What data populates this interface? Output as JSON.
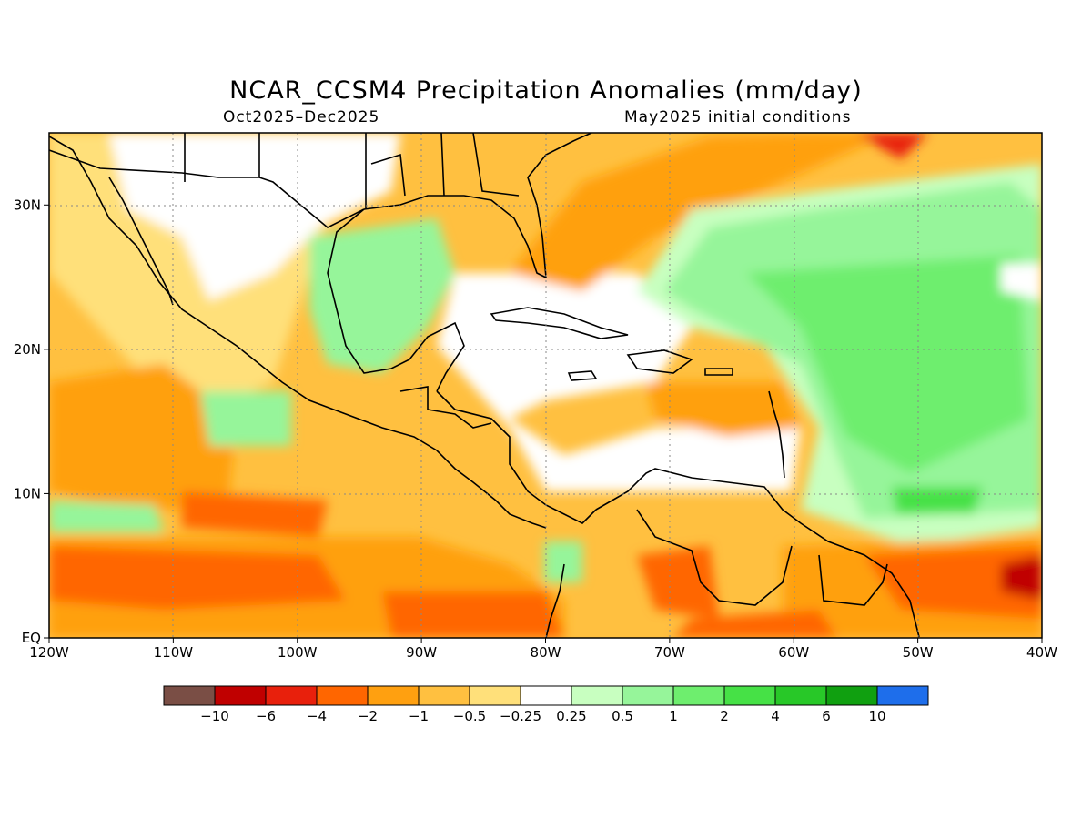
{
  "title": "NCAR_CCSM4 Precipitation Anomalies (mm/day)",
  "subtitle_left": "Oct2025–Dec2025",
  "subtitle_right": "May2025 initial conditions",
  "map": {
    "lon_range": [
      -120,
      -40
    ],
    "lat_range": [
      0,
      35
    ],
    "lon_ticks": [
      {
        "lon": -120,
        "label": "120W"
      },
      {
        "lon": -110,
        "label": "110W"
      },
      {
        "lon": -100,
        "label": "100W"
      },
      {
        "lon": -90,
        "label": "90W"
      },
      {
        "lon": -80,
        "label": "80W"
      },
      {
        "lon": -70,
        "label": "70W"
      },
      {
        "lon": -60,
        "label": "60W"
      },
      {
        "lon": -50,
        "label": "50W"
      },
      {
        "lon": -40,
        "label": "40W"
      }
    ],
    "lat_ticks": [
      {
        "lat": 0,
        "label": "EQ"
      },
      {
        "lat": 10,
        "label": "10N"
      },
      {
        "lat": 20,
        "label": "20N"
      },
      {
        "lat": 30,
        "label": "30N"
      }
    ]
  },
  "colorbar": {
    "colors": [
      "#7a4e45",
      "#c00000",
      "#e8200c",
      "#ff6600",
      "#ffa010",
      "#ffc040",
      "#ffe07a",
      "#ffffff",
      "#c8ffc0",
      "#96f59a",
      "#6eee6e",
      "#46e146",
      "#28c828",
      "#10a010",
      "#1e6eeb"
    ],
    "labels": [
      "−10",
      "−6",
      "−4",
      "−2",
      "−1",
      "−0.5",
      "−0.25",
      "0.25",
      "0.5",
      "1",
      "2",
      "4",
      "6",
      "10"
    ]
  }
}
